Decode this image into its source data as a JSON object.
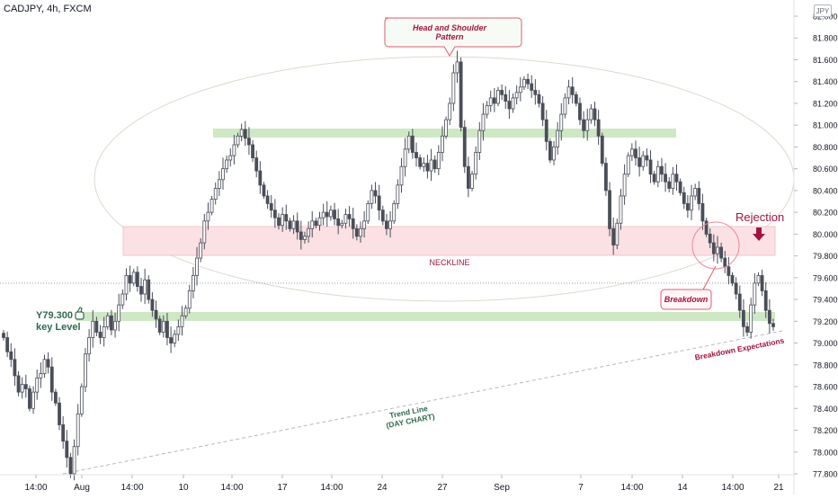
{
  "header": {
    "symbol_line": "CADJPY, 4h, FXCM",
    "currency": "JPY"
  },
  "colors": {
    "candle_bull_body": "#ffffff",
    "candle_bear_body": "#4a4e59",
    "candle_outline": "#4a4e59",
    "green_zone": "#cfe8c4",
    "pink_zone": "#fbe1e4",
    "annotation_red": "#a3143f",
    "annotation_green": "#2d6a4f"
  },
  "chart_data": {
    "type": "candlestick",
    "symbol": "CADJPY",
    "timeframe": "4h",
    "source": "FXCM",
    "ylim": [
      77.8,
      82.0
    ],
    "y_ticks": [
      "82.000",
      "81.800",
      "81.600",
      "81.400",
      "81.200",
      "81.000",
      "80.800",
      "80.600",
      "80.400",
      "80.200",
      "80.000",
      "79.800",
      "79.600",
      "79.400",
      "79.200",
      "79.000",
      "78.800",
      "78.600",
      "78.400",
      "78.200",
      "78.000",
      "77.800"
    ],
    "x_ticks": [
      "14:00",
      "Aug",
      "14:00",
      "10",
      "14:00",
      "17",
      "14:00",
      "24",
      "27",
      "Sep",
      "7",
      "14:00",
      "14",
      "14:00",
      "21"
    ],
    "closes": [
      79.05,
      78.92,
      78.85,
      78.7,
      78.55,
      78.62,
      78.58,
      78.4,
      78.55,
      78.68,
      78.72,
      78.85,
      78.78,
      78.55,
      78.45,
      78.25,
      78.1,
      77.95,
      77.8,
      78.05,
      78.35,
      78.6,
      78.9,
      79.05,
      79.2,
      79.1,
      79.05,
      79.15,
      79.25,
      79.12,
      79.2,
      79.35,
      79.45,
      79.62,
      79.55,
      79.65,
      79.52,
      79.45,
      79.58,
      79.4,
      79.3,
      79.22,
      79.1,
      79.2,
      79.05,
      79.0,
      79.08,
      79.15,
      79.25,
      79.32,
      79.48,
      79.62,
      79.78,
      79.92,
      80.12,
      80.2,
      80.32,
      80.42,
      80.5,
      80.6,
      80.68,
      80.72,
      80.82,
      80.9,
      80.96,
      80.88,
      80.82,
      80.7,
      80.58,
      80.45,
      80.35,
      80.28,
      80.22,
      80.15,
      80.08,
      80.18,
      80.12,
      80.05,
      80.12,
      80.02,
      79.95,
      79.98,
      80.05,
      80.12,
      80.08,
      80.15,
      80.2,
      80.16,
      80.22,
      80.14,
      80.08,
      80.1,
      80.18,
      80.14,
      80.05,
      79.98,
      80.05,
      80.12,
      80.28,
      80.4,
      80.35,
      80.22,
      80.12,
      80.05,
      80.12,
      80.28,
      80.45,
      80.62,
      80.78,
      80.9,
      80.75,
      80.7,
      80.62,
      80.65,
      80.58,
      80.68,
      80.6,
      80.75,
      80.9,
      81.05,
      81.2,
      81.48,
      81.58,
      80.98,
      80.62,
      80.42,
      80.55,
      80.75,
      80.95,
      81.1,
      81.18,
      81.25,
      81.2,
      81.32,
      81.28,
      81.22,
      81.15,
      81.25,
      81.3,
      81.35,
      81.42,
      81.38,
      81.32,
      81.28,
      81.2,
      81.05,
      80.85,
      80.68,
      80.8,
      80.95,
      81.1,
      81.25,
      81.35,
      81.28,
      81.2,
      81.05,
      80.95,
      81.05,
      81.15,
      81.05,
      80.9,
      80.65,
      80.4,
      80.05,
      79.9,
      80.1,
      80.35,
      80.55,
      80.72,
      80.78,
      80.7,
      80.62,
      80.72,
      80.68,
      80.55,
      80.48,
      80.62,
      80.55,
      80.48,
      80.42,
      80.55,
      80.48,
      80.38,
      80.28,
      80.22,
      80.35,
      80.42,
      80.28,
      80.12,
      80.0,
      79.92,
      79.82,
      79.88,
      79.78,
      79.7,
      79.62,
      79.55,
      79.45,
      79.3,
      79.15,
      79.1,
      79.35,
      79.55,
      79.62,
      79.48,
      79.3,
      79.18,
      79.15
    ],
    "horizontal_level": 79.55,
    "trendline": {
      "start": [
        "Jul 31",
        77.8
      ],
      "end": [
        "Sep 21",
        79.1
      ]
    }
  },
  "annotations": {
    "head_and_shoulder": "Head and Shoulder Pattern",
    "neckline": "NECKLINE",
    "rejection": "Rejection",
    "breakdown": "Breakdown",
    "breakdown_expectations": "Breakdown Expectations",
    "key_level_value": "Y79.300",
    "key_level_text": "key Level",
    "trend_line": "Trend Line",
    "trend_line_sub": "(DAY CHART)"
  }
}
